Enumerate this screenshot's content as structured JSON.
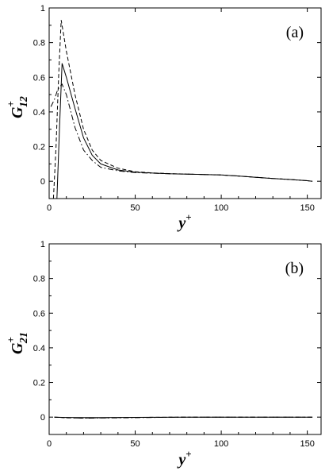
{
  "chart_data": [
    {
      "type": "line",
      "panel_label": "(a)",
      "ylabel": {
        "base": "G",
        "sup": "+",
        "sub": "12"
      },
      "xlabel": {
        "base": "y",
        "sup": "+"
      },
      "xlim": [
        0,
        158
      ],
      "ylim": [
        -0.1,
        1.0
      ],
      "xticks": [
        0,
        50,
        100,
        150
      ],
      "yticks": [
        0,
        0.2,
        0.4,
        0.6,
        0.8,
        1
      ],
      "grid": false,
      "series": [
        {
          "style": "solid",
          "x": [
            4.5,
            6,
            7.5,
            10,
            15,
            20,
            25,
            30,
            40,
            50,
            60,
            70,
            80,
            90,
            100,
            110,
            120,
            130,
            140,
            150,
            153
          ],
          "y": [
            -0.1,
            0.3,
            0.68,
            0.6,
            0.42,
            0.25,
            0.15,
            0.1,
            0.065,
            0.052,
            0.047,
            0.043,
            0.041,
            0.039,
            0.036,
            0.03,
            0.023,
            0.016,
            0.01,
            0.003,
            0.0
          ]
        },
        {
          "style": "dashed",
          "x": [
            2.5,
            4,
            5.5,
            7,
            10,
            15,
            20,
            25,
            30,
            40,
            50,
            60,
            70,
            80,
            90,
            100,
            110,
            120,
            130,
            140,
            150,
            153
          ],
          "y": [
            -0.1,
            0.2,
            0.6,
            0.93,
            0.75,
            0.5,
            0.3,
            0.18,
            0.12,
            0.075,
            0.055,
            0.048,
            0.044,
            0.041,
            0.039,
            0.036,
            0.03,
            0.023,
            0.016,
            0.01,
            0.003,
            0.0
          ]
        },
        {
          "style": "dash-dot",
          "x": [
            1,
            3,
            5,
            7.5,
            10,
            15,
            20,
            25,
            30,
            40,
            50,
            60,
            70,
            80,
            90,
            100,
            110,
            120,
            130,
            140,
            150,
            153
          ],
          "y": [
            0.43,
            0.47,
            0.53,
            0.56,
            0.5,
            0.31,
            0.18,
            0.12,
            0.08,
            0.06,
            0.05,
            0.046,
            0.043,
            0.041,
            0.039,
            0.036,
            0.03,
            0.023,
            0.016,
            0.01,
            0.003,
            0.0
          ]
        }
      ]
    },
    {
      "type": "line",
      "panel_label": "(b)",
      "ylabel": {
        "base": "G",
        "sup": "+",
        "sub": "21"
      },
      "xlabel": {
        "base": "y",
        "sup": "+"
      },
      "xlim": [
        0,
        158
      ],
      "ylim": [
        -0.1,
        1.0
      ],
      "xticks": [
        0,
        50,
        100,
        150
      ],
      "yticks": [
        0,
        0.2,
        0.4,
        0.6,
        0.8,
        1
      ],
      "grid": false,
      "series": [
        {
          "style": "solid",
          "x": [
            3,
            10,
            20,
            40,
            60,
            80,
            100,
            120,
            140,
            153
          ],
          "y": [
            0.0,
            -0.002,
            -0.003,
            -0.002,
            -0.001,
            0.0,
            0.0,
            0.0,
            0.0,
            0.0
          ]
        },
        {
          "style": "dashed",
          "x": [
            3,
            10,
            20,
            40,
            60,
            80,
            100,
            120,
            140,
            153
          ],
          "y": [
            0.0,
            -0.004,
            -0.005,
            -0.003,
            -0.001,
            0.0,
            0.0,
            0.0,
            0.0,
            0.0
          ]
        },
        {
          "style": "dash-dot",
          "x": [
            3,
            10,
            20,
            40,
            60,
            80,
            100,
            120,
            140,
            153
          ],
          "y": [
            0.0,
            -0.003,
            -0.006,
            -0.004,
            -0.002,
            0.0,
            0.0,
            0.0,
            0.0,
            0.0
          ]
        }
      ]
    }
  ]
}
